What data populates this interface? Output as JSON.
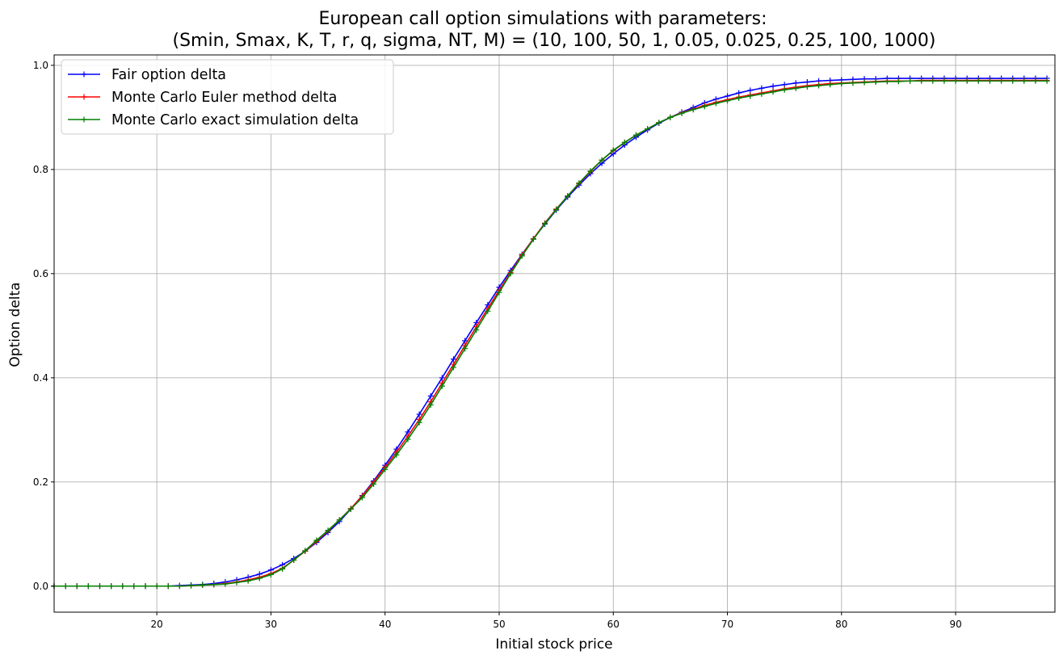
{
  "chart_data": {
    "type": "line",
    "title": "European call option simulations with parameters:",
    "subtitle": "(Smin, Smax, K, T, r, q, sigma, NT, M) = (10, 100, 50, 1, 0.05, 0.025, 0.25, 100, 1000)",
    "xlabel": "Initial stock price",
    "ylabel": "Option delta",
    "xlim": [
      11,
      98.7
    ],
    "ylim": [
      -0.05,
      1.02
    ],
    "x_ticks": [
      20,
      30,
      40,
      50,
      60,
      70,
      80,
      90
    ],
    "y_ticks": [
      0.0,
      0.2,
      0.4,
      0.6,
      0.8,
      1.0
    ],
    "x_tick_labels": [
      "20",
      "30",
      "40",
      "50",
      "60",
      "70",
      "80",
      "90"
    ],
    "y_tick_labels": [
      "0.0",
      "0.2",
      "0.4",
      "0.6",
      "0.8",
      "1.0"
    ],
    "grid": true,
    "legend_position": "top-left",
    "marker": "+",
    "x": [
      11,
      12,
      13,
      14,
      15,
      16,
      17,
      18,
      19,
      20,
      21,
      22,
      23,
      24,
      25,
      26,
      27,
      28,
      29,
      30,
      31,
      32,
      33,
      34,
      35,
      36,
      37,
      38,
      39,
      40,
      41,
      42,
      43,
      44,
      45,
      46,
      47,
      48,
      49,
      50,
      51,
      52,
      53,
      54,
      55,
      56,
      57,
      58,
      59,
      60,
      61,
      62,
      63,
      64,
      65,
      66,
      67,
      68,
      69,
      70,
      71,
      72,
      73,
      74,
      75,
      76,
      77,
      78,
      79,
      80,
      81,
      82,
      83,
      84,
      85,
      86,
      87,
      88,
      89,
      90,
      91,
      92,
      93,
      94,
      95,
      96,
      97,
      98
    ],
    "series": [
      {
        "name": "Fair option delta",
        "color": "#0000ff",
        "values": [
          0.0,
          0.0,
          0.0,
          0.0,
          0.0,
          0.0,
          0.0,
          0.0,
          0.0,
          0.0,
          0.0,
          0.001,
          0.002,
          0.003,
          0.005,
          0.008,
          0.012,
          0.017,
          0.023,
          0.031,
          0.041,
          0.053,
          0.067,
          0.084,
          0.103,
          0.124,
          0.148,
          0.174,
          0.202,
          0.232,
          0.263,
          0.296,
          0.33,
          0.365,
          0.4,
          0.436,
          0.471,
          0.506,
          0.54,
          0.574,
          0.606,
          0.637,
          0.667,
          0.695,
          0.722,
          0.747,
          0.77,
          0.792,
          0.812,
          0.83,
          0.847,
          0.862,
          0.876,
          0.889,
          0.9,
          0.91,
          0.919,
          0.928,
          0.935,
          0.941,
          0.947,
          0.952,
          0.956,
          0.96,
          0.963,
          0.966,
          0.968,
          0.97,
          0.971,
          0.972,
          0.973,
          0.974,
          0.974,
          0.975,
          0.975,
          0.975,
          0.975,
          0.975,
          0.975,
          0.975,
          0.975,
          0.975,
          0.975,
          0.975,
          0.975,
          0.975,
          0.975,
          0.975
        ]
      },
      {
        "name": "Monte Carlo Euler method delta",
        "color": "#ff0000",
        "values": [
          0.0,
          0.0,
          0.0,
          0.0,
          0.0,
          0.0,
          0.0,
          0.0,
          0.0,
          0.0,
          0.0,
          0.0,
          0.001,
          0.002,
          0.003,
          0.005,
          0.008,
          0.012,
          0.017,
          0.024,
          0.034,
          0.05,
          0.067,
          0.086,
          0.106,
          0.127,
          0.149,
          0.173,
          0.2,
          0.228,
          0.257,
          0.288,
          0.32,
          0.354,
          0.39,
          0.426,
          0.462,
          0.498,
          0.533,
          0.568,
          0.602,
          0.636,
          0.667,
          0.697,
          0.724,
          0.749,
          0.773,
          0.796,
          0.818,
          0.836,
          0.852,
          0.866,
          0.878,
          0.89,
          0.9,
          0.909,
          0.916,
          0.923,
          0.929,
          0.934,
          0.939,
          0.943,
          0.947,
          0.951,
          0.955,
          0.958,
          0.961,
          0.963,
          0.965,
          0.966,
          0.967,
          0.968,
          0.969,
          0.97,
          0.97,
          0.97,
          0.971,
          0.971,
          0.971,
          0.971,
          0.971,
          0.971,
          0.971,
          0.971,
          0.971,
          0.971,
          0.971,
          0.971
        ]
      },
      {
        "name": "Monte Carlo exact simulation delta",
        "color": "#008000",
        "values": [
          0.0,
          0.0,
          0.0,
          0.0,
          0.0,
          0.0,
          0.0,
          0.0,
          0.0,
          0.0,
          0.0,
          0.0,
          0.001,
          0.002,
          0.003,
          0.004,
          0.007,
          0.01,
          0.015,
          0.022,
          0.033,
          0.05,
          0.068,
          0.088,
          0.107,
          0.127,
          0.148,
          0.17,
          0.196,
          0.224,
          0.252,
          0.282,
          0.314,
          0.348,
          0.384,
          0.42,
          0.456,
          0.492,
          0.528,
          0.564,
          0.6,
          0.634,
          0.666,
          0.696,
          0.723,
          0.749,
          0.774,
          0.797,
          0.818,
          0.837,
          0.852,
          0.866,
          0.878,
          0.89,
          0.9,
          0.908,
          0.915,
          0.921,
          0.927,
          0.932,
          0.937,
          0.941,
          0.945,
          0.949,
          0.953,
          0.956,
          0.959,
          0.961,
          0.963,
          0.965,
          0.966,
          0.967,
          0.968,
          0.969,
          0.969,
          0.97,
          0.97,
          0.97,
          0.97,
          0.97,
          0.97,
          0.97,
          0.97,
          0.97,
          0.97,
          0.97,
          0.97,
          0.97
        ]
      }
    ]
  }
}
